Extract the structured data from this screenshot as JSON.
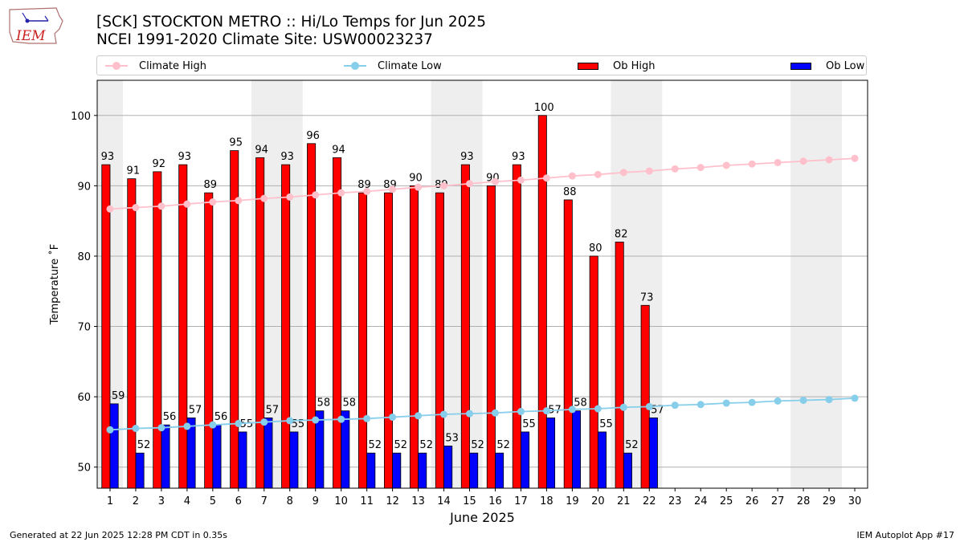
{
  "header": {
    "title_line1": "[SCK] STOCKTON METRO :: Hi/Lo Temps for Jun 2025",
    "title_line2": "NCEI 1991-2020 Climate Site: USW00023237"
  },
  "logo": {
    "text": "IEM",
    "icon": "iowa-state-map-logo"
  },
  "footer": {
    "generated": "Generated at 22 Jun 2025 12:28 PM CDT in 0.35s",
    "app": "IEM Autoplot App #17"
  },
  "colors": {
    "climate_high": "#ffc0cb",
    "climate_low": "#87ceeb",
    "ob_high": "#ff0000",
    "ob_low": "#0000ff",
    "weekend_shade": "#eeeeee",
    "grid": "#b0b0b0"
  },
  "chart_data": {
    "type": "bar",
    "xlabel": "June 2025",
    "ylabel": "Temperature ˚F",
    "xlim": [
      0.5,
      30.5
    ],
    "ylim": [
      47,
      105
    ],
    "yticks": [
      50,
      60,
      70,
      80,
      90,
      100
    ],
    "categories": [
      1,
      2,
      3,
      4,
      5,
      6,
      7,
      8,
      9,
      10,
      11,
      12,
      13,
      14,
      15,
      16,
      17,
      18,
      19,
      20,
      21,
      22,
      23,
      24,
      25,
      26,
      27,
      28,
      29,
      30
    ],
    "legend_position": "top",
    "grid": "horizontal",
    "shaded_weekend_ranges": [
      [
        0.5,
        1.5
      ],
      [
        6.5,
        8.5
      ],
      [
        13.5,
        15.5
      ],
      [
        20.5,
        22.5
      ],
      [
        27.5,
        29.5
      ]
    ],
    "series": [
      {
        "name": "Climate High",
        "kind": "line",
        "values": [
          86.7,
          86.9,
          87.1,
          87.4,
          87.7,
          87.9,
          88.2,
          88.4,
          88.7,
          89.0,
          89.2,
          89.5,
          89.8,
          90.0,
          90.3,
          90.6,
          90.8,
          91.1,
          91.4,
          91.6,
          91.9,
          92.1,
          92.4,
          92.6,
          92.9,
          93.1,
          93.3,
          93.5,
          93.7,
          93.9
        ]
      },
      {
        "name": "Climate Low",
        "kind": "line",
        "values": [
          55.3,
          55.5,
          55.6,
          55.8,
          56.0,
          56.2,
          56.4,
          56.6,
          56.7,
          56.8,
          56.9,
          57.1,
          57.3,
          57.5,
          57.6,
          57.7,
          57.9,
          58.0,
          58.2,
          58.3,
          58.5,
          58.6,
          58.8,
          58.9,
          59.1,
          59.2,
          59.4,
          59.5,
          59.6,
          59.8
        ]
      },
      {
        "name": "Ob High",
        "kind": "bar",
        "values": [
          93,
          91,
          92,
          93,
          89,
          95,
          94,
          93,
          96,
          94,
          89,
          89,
          90,
          89,
          93,
          90,
          93,
          100,
          88,
          80,
          82,
          73,
          null,
          null,
          null,
          null,
          null,
          null,
          null,
          null
        ]
      },
      {
        "name": "Ob Low",
        "kind": "bar",
        "values": [
          59,
          52,
          56,
          57,
          56,
          55,
          57,
          55,
          58,
          58,
          52,
          52,
          52,
          53,
          52,
          52,
          55,
          57,
          58,
          55,
          52,
          57,
          null,
          null,
          null,
          null,
          null,
          null,
          null,
          null
        ]
      }
    ]
  }
}
